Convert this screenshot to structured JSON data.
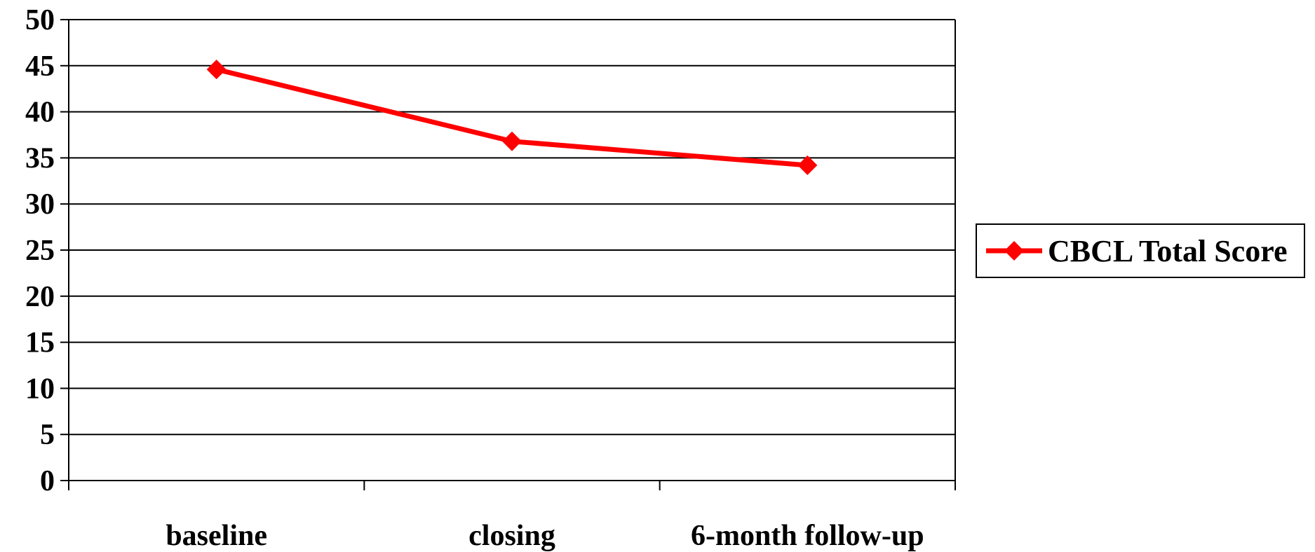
{
  "chart_data": {
    "type": "line",
    "categories": [
      "baseline",
      "closing",
      "6-month follow-up"
    ],
    "series": [
      {
        "name": "CBCL Total Score",
        "values": [
          44.6,
          36.8,
          34.2
        ],
        "color": "#ff0000",
        "marker": "diamond"
      }
    ],
    "ylim": [
      0,
      50
    ],
    "y_ticks": [
      "0",
      "5",
      "10",
      "15",
      "20",
      "25",
      "30",
      "35",
      "40",
      "45",
      "50"
    ],
    "grid": true,
    "legend_position": "right",
    "title": "",
    "xlabel": "",
    "ylabel": ""
  }
}
